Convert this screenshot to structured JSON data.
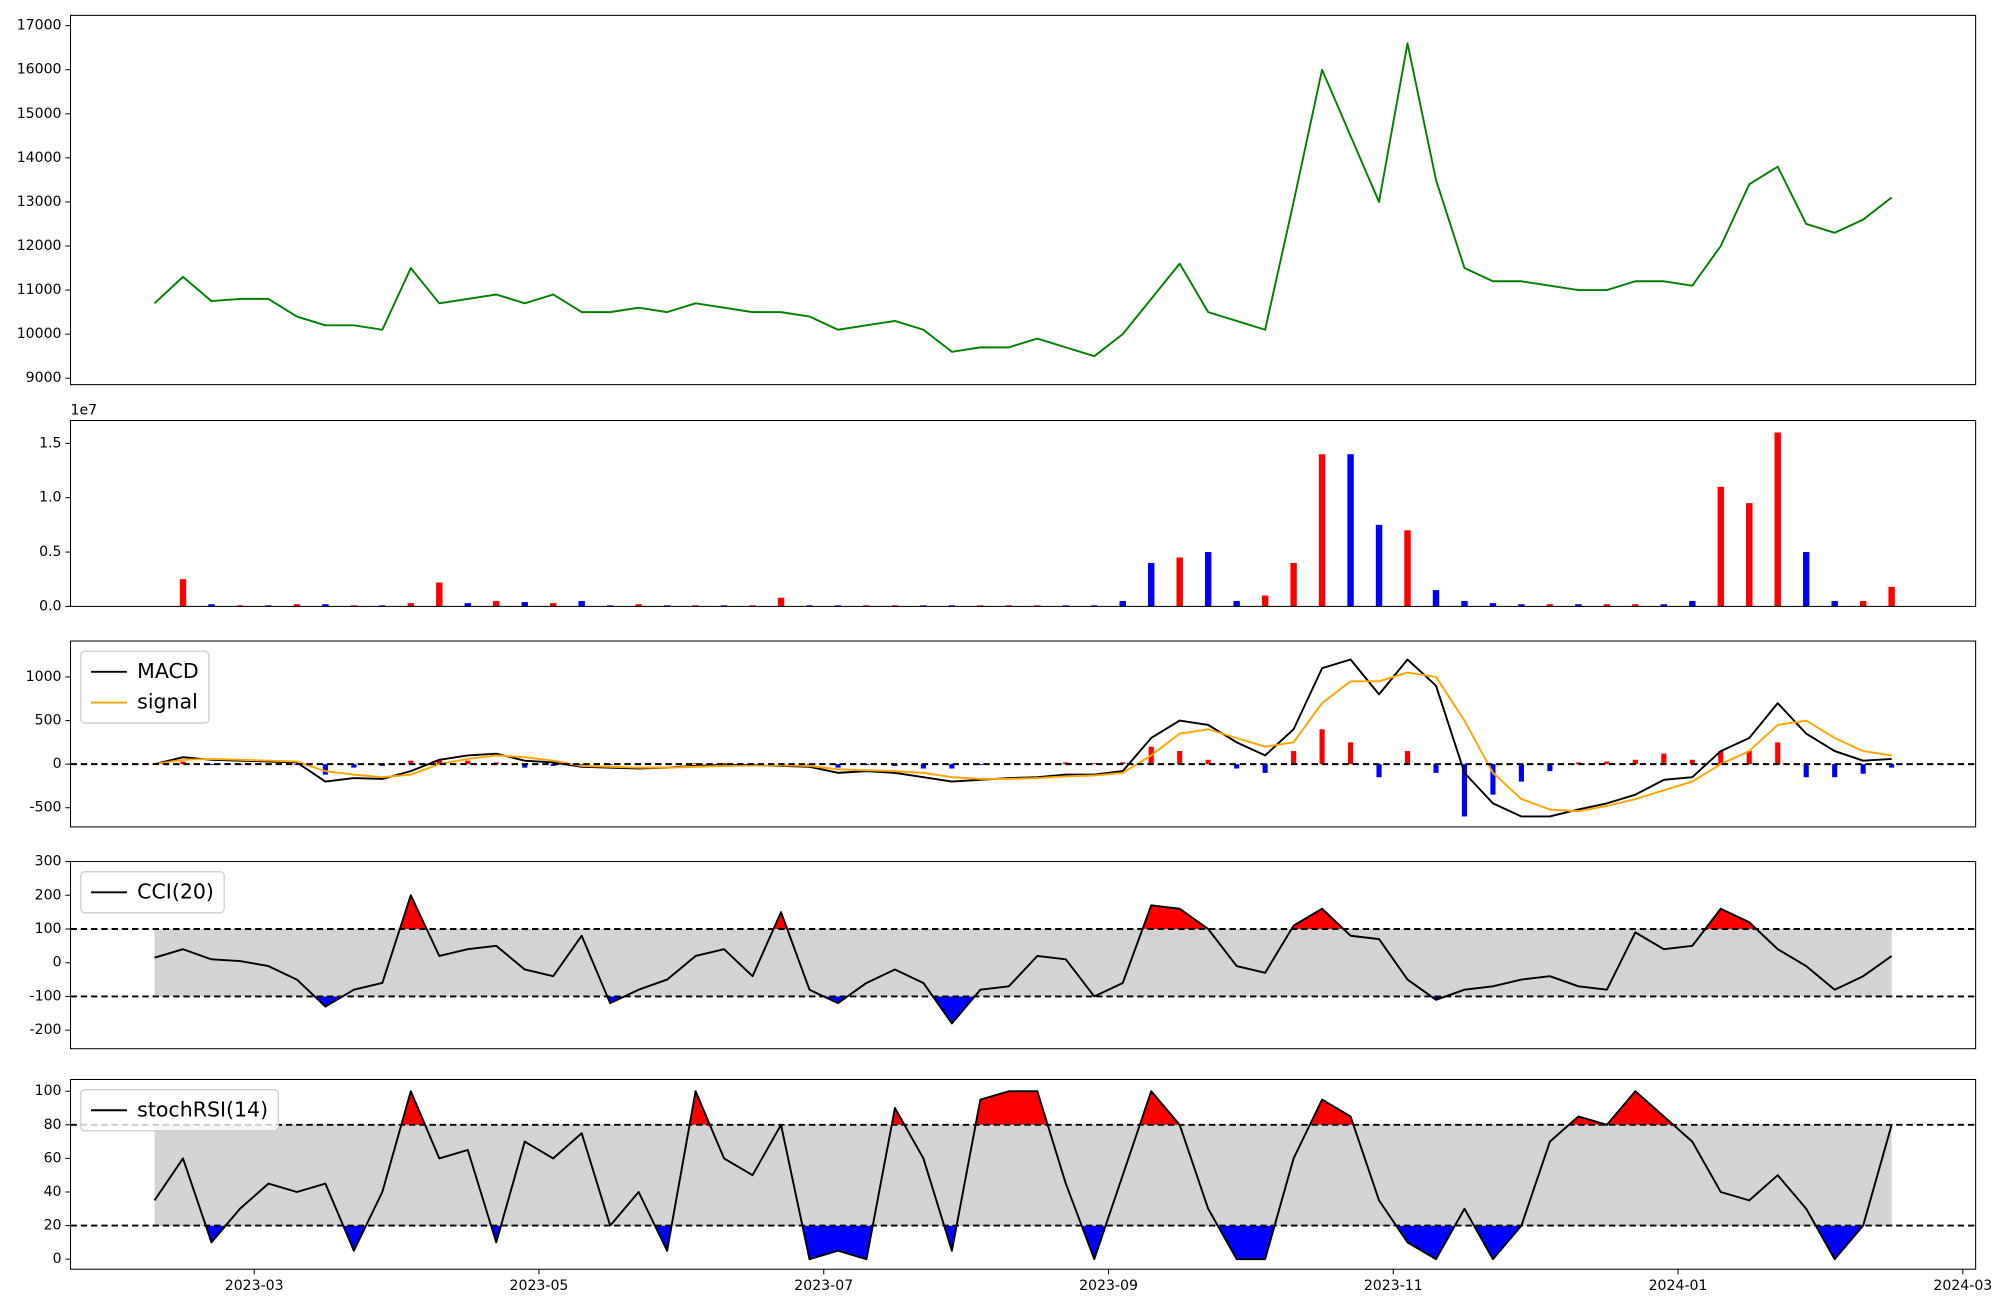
{
  "chart_data": [
    {
      "type": "line",
      "x": [
        2.3,
        2.5,
        2.7,
        2.9,
        3.1,
        3.3,
        3.5,
        3.7,
        3.9,
        4.1,
        4.3,
        4.5,
        4.7,
        4.9,
        5.1,
        5.3,
        5.5,
        5.7,
        5.9,
        6.1,
        6.3,
        6.5,
        6.7,
        6.9,
        7.1,
        7.3,
        7.5,
        7.7,
        7.9,
        8.1,
        8.3,
        8.5,
        8.7,
        8.9,
        9.1,
        9.3,
        9.5,
        9.7,
        9.9,
        10.1,
        10.3,
        10.5,
        10.7,
        10.9,
        11.1,
        11.3,
        11.5,
        11.7,
        11.9,
        12.1,
        12.3,
        12.5,
        12.7,
        12.9,
        13.1,
        13.3,
        13.5,
        13.7,
        13.9,
        14.1,
        14.3,
        14.5
      ],
      "xlim": [
        1.71,
        15.09
      ],
      "ylim": [
        8855,
        17233
      ],
      "yticks": [
        9000,
        10000,
        11000,
        12000,
        13000,
        14000,
        15000,
        16000,
        17000
      ],
      "series": [
        {
          "color": "#008000",
          "values": [
            10700,
            11300,
            10750,
            10800,
            10800,
            10400,
            10200,
            10200,
            10100,
            11500,
            10700,
            10800,
            10900,
            10700,
            10900,
            10500,
            10500,
            10600,
            10500,
            10700,
            10600,
            10500,
            10500,
            10400,
            10100,
            10200,
            10300,
            10100,
            9600,
            9700,
            9700,
            9900,
            9700,
            9500,
            10000,
            10800,
            11600,
            10500,
            10300,
            10100,
            13000,
            16000,
            14500,
            13000,
            16600,
            13500,
            11500,
            11200,
            11200,
            11100,
            11000,
            11000,
            11200,
            11200,
            11100,
            12000,
            13400,
            13800,
            12500,
            12300,
            12600,
            13100
          ]
        }
      ]
    },
    {
      "type": "bar",
      "x": [
        2.3,
        2.5,
        2.7,
        2.9,
        3.1,
        3.3,
        3.5,
        3.7,
        3.9,
        4.1,
        4.3,
        4.5,
        4.7,
        4.9,
        5.1,
        5.3,
        5.5,
        5.7,
        5.9,
        6.1,
        6.3,
        6.5,
        6.7,
        6.9,
        7.1,
        7.3,
        7.5,
        7.7,
        7.9,
        8.1,
        8.3,
        8.5,
        8.7,
        8.9,
        9.1,
        9.3,
        9.5,
        9.7,
        9.9,
        10.1,
        10.3,
        10.5,
        10.7,
        10.9,
        11.1,
        11.3,
        11.5,
        11.7,
        11.9,
        12.1,
        12.3,
        12.5,
        12.7,
        12.9,
        13.1,
        13.3,
        13.5,
        13.7,
        13.9,
        14.1,
        14.3,
        14.5
      ],
      "xlim": [
        1.71,
        15.09
      ],
      "ylim": [
        0,
        1.71
      ],
      "yticks": [
        {
          "value": 0,
          "label": "0.0"
        },
        0.5,
        {
          "value": 1,
          "label": "1.0"
        },
        1.5
      ],
      "offset_label": "1e7",
      "values": [
        0,
        0.25,
        0.02,
        0.01,
        0.01,
        0.02,
        0.02,
        0.01,
        0.01,
        0.03,
        0.22,
        0.03,
        0.05,
        0.04,
        0.03,
        0.05,
        0.01,
        0.02,
        0.01,
        0.01,
        0.01,
        0.01,
        0.08,
        0.01,
        0.01,
        0.01,
        0.01,
        0.01,
        0.01,
        0.01,
        0.01,
        0.01,
        0.01,
        0.01,
        0.05,
        0.4,
        0.45,
        0.5,
        0.05,
        0.1,
        0.4,
        1.4,
        1.4,
        0.75,
        0.7,
        0.15,
        0.05,
        0.03,
        0.02,
        0.02,
        0.02,
        0.02,
        0.02,
        0.02,
        0.05,
        1.1,
        0.95,
        1.6,
        0.5,
        0.05,
        0.05,
        0.18
      ],
      "colors": [
        "blue",
        "red",
        "blue",
        "red",
        "blue",
        "red",
        "blue",
        "red",
        "blue",
        "red",
        "red",
        "blue",
        "red",
        "blue",
        "red",
        "blue",
        "blue",
        "red",
        "blue",
        "red",
        "blue",
        "red",
        "red",
        "blue",
        "blue",
        "red",
        "red",
        "blue",
        "blue",
        "red",
        "red",
        "red",
        "blue",
        "blue",
        "blue",
        "blue",
        "red",
        "blue",
        "blue",
        "red",
        "red",
        "red",
        "blue",
        "blue",
        "red",
        "blue",
        "blue",
        "blue",
        "blue",
        "red",
        "blue",
        "red",
        "red",
        "blue",
        "blue",
        "red",
        "red",
        "red",
        "blue",
        "blue",
        "red",
        "red"
      ]
    },
    {
      "type": "line",
      "x": [
        2.3,
        2.5,
        2.7,
        2.9,
        3.1,
        3.3,
        3.5,
        3.7,
        3.9,
        4.1,
        4.3,
        4.5,
        4.7,
        4.9,
        5.1,
        5.3,
        5.5,
        5.7,
        5.9,
        6.1,
        6.3,
        6.5,
        6.7,
        6.9,
        7.1,
        7.3,
        7.5,
        7.7,
        7.9,
        8.1,
        8.3,
        8.5,
        8.7,
        8.9,
        9.1,
        9.3,
        9.5,
        9.7,
        9.9,
        10.1,
        10.3,
        10.5,
        10.7,
        10.9,
        11.1,
        11.3,
        11.5,
        11.7,
        11.9,
        12.1,
        12.3,
        12.5,
        12.7,
        12.9,
        13.1,
        13.3,
        13.5,
        13.7,
        13.9,
        14.1,
        14.3,
        14.5
      ],
      "xlim": [
        1.71,
        15.09
      ],
      "ylim": [
        -720,
        1412
      ],
      "yticks": [
        -500,
        0,
        500,
        1000
      ],
      "levels": [
        0
      ],
      "histogram": [
        0,
        30,
        -10,
        -10,
        -10,
        -10,
        -120,
        -40,
        -20,
        40,
        50,
        40,
        20,
        -40,
        -20,
        -10,
        -10,
        -10,
        0,
        10,
        10,
        5,
        -5,
        -10,
        -40,
        -10,
        -20,
        -50,
        -50,
        -10,
        10,
        10,
        20,
        10,
        20,
        200,
        150,
        50,
        -50,
        -100,
        150,
        400,
        250,
        -150,
        150,
        -100,
        -600,
        -350,
        -200,
        -80,
        20,
        30,
        50,
        120,
        50,
        150,
        150,
        250,
        -150,
        -150,
        -110,
        -40
      ],
      "positive_color": "#ff0000",
      "negative_color": "#0000ff",
      "legend": "upper left",
      "series": [
        {
          "name": "MACD",
          "color": "#000000",
          "values": [
            0,
            80,
            50,
            40,
            30,
            20,
            -200,
            -160,
            -170,
            -80,
            50,
            100,
            120,
            40,
            20,
            -30,
            -40,
            -50,
            -40,
            -20,
            -10,
            -10,
            -20,
            -30,
            -100,
            -80,
            -100,
            -150,
            -200,
            -180,
            -160,
            -150,
            -120,
            -120,
            -80,
            300,
            500,
            450,
            250,
            100,
            400,
            1100,
            1200,
            800,
            1200,
            900,
            -100,
            -450,
            -600,
            -600,
            -520,
            -450,
            -350,
            -180,
            -150,
            150,
            300,
            700,
            350,
            150,
            40,
            60
          ]
        },
        {
          "name": "signal",
          "color": "#ffa500",
          "values": [
            0,
            50,
            60,
            50,
            40,
            30,
            -80,
            -120,
            -150,
            -120,
            0,
            60,
            100,
            80,
            40,
            -20,
            -30,
            -40,
            -40,
            -30,
            -20,
            -15,
            -15,
            -20,
            -60,
            -70,
            -80,
            -100,
            -150,
            -170,
            -170,
            -160,
            -140,
            -130,
            -100,
            100,
            350,
            400,
            300,
            200,
            250,
            700,
            950,
            950,
            1050,
            1000,
            500,
            -100,
            -400,
            -520,
            -540,
            -480,
            -400,
            -300,
            -200,
            0,
            150,
            450,
            500,
            300,
            150,
            100
          ]
        }
      ]
    },
    {
      "type": "line",
      "x": [
        2.3,
        2.5,
        2.7,
        2.9,
        3.1,
        3.3,
        3.5,
        3.7,
        3.9,
        4.1,
        4.3,
        4.5,
        4.7,
        4.9,
        5.1,
        5.3,
        5.5,
        5.7,
        5.9,
        6.1,
        6.3,
        6.5,
        6.7,
        6.9,
        7.1,
        7.3,
        7.5,
        7.7,
        7.9,
        8.1,
        8.3,
        8.5,
        8.7,
        8.9,
        9.1,
        9.3,
        9.5,
        9.7,
        9.9,
        10.1,
        10.3,
        10.5,
        10.7,
        10.9,
        11.1,
        11.3,
        11.5,
        11.7,
        11.9,
        12.1,
        12.3,
        12.5,
        12.7,
        12.9,
        13.1,
        13.3,
        13.5,
        13.7,
        13.9,
        14.1,
        14.3,
        14.5
      ],
      "xlim": [
        1.71,
        15.09
      ],
      "ylim": [
        -255,
        300
      ],
      "yticks": [
        -200,
        -100,
        0,
        100,
        200,
        300
      ],
      "levels": [
        100,
        -100
      ],
      "band_color": "#d3d3d3",
      "upper_fill_color": "#ff0000",
      "lower_fill_color": "#0000ff",
      "legend": "upper left",
      "series": [
        {
          "name": "CCI(20)",
          "color": "#000000",
          "values": [
            15,
            40,
            10,
            5,
            -10,
            -50,
            -130,
            -80,
            -60,
            200,
            20,
            40,
            50,
            -20,
            -40,
            80,
            -120,
            -80,
            -50,
            20,
            40,
            -40,
            150,
            -80,
            -120,
            -60,
            -20,
            -60,
            -180,
            -80,
            -70,
            20,
            10,
            -100,
            -60,
            170,
            160,
            100,
            -10,
            -30,
            110,
            160,
            80,
            70,
            -50,
            -110,
            -80,
            -70,
            -50,
            -40,
            -70,
            -80,
            90,
            40,
            50,
            160,
            120,
            40,
            -10,
            -80,
            -40,
            20
          ]
        }
      ]
    },
    {
      "type": "line",
      "x": [
        2.3,
        2.5,
        2.7,
        2.9,
        3.1,
        3.3,
        3.5,
        3.7,
        3.9,
        4.1,
        4.3,
        4.5,
        4.7,
        4.9,
        5.1,
        5.3,
        5.5,
        5.7,
        5.9,
        6.1,
        6.3,
        6.5,
        6.7,
        6.9,
        7.1,
        7.3,
        7.5,
        7.7,
        7.9,
        8.1,
        8.3,
        8.5,
        8.7,
        8.9,
        9.1,
        9.3,
        9.5,
        9.7,
        9.9,
        10.1,
        10.3,
        10.5,
        10.7,
        10.9,
        11.1,
        11.3,
        11.5,
        11.7,
        11.9,
        12.1,
        12.3,
        12.5,
        12.7,
        12.9,
        13.1,
        13.3,
        13.5,
        13.7,
        13.9,
        14.1,
        14.3,
        14.5
      ],
      "xlim": [
        1.71,
        15.09
      ],
      "ylim": [
        -6,
        107
      ],
      "yticks": [
        0,
        20,
        40,
        60,
        80,
        100
      ],
      "xticks": [
        {
          "value": 3,
          "label": "2023-03"
        },
        {
          "value": 5,
          "label": "2023-05"
        },
        {
          "value": 7,
          "label": "2023-07"
        },
        {
          "value": 9,
          "label": "2023-09"
        },
        {
          "value": 11,
          "label": "2023-11"
        },
        {
          "value": 13,
          "label": "2024-01"
        },
        {
          "value": 15,
          "label": "2024-03"
        }
      ],
      "levels": [
        80,
        20
      ],
      "band_color": "#d3d3d3",
      "upper_fill_color": "#ff0000",
      "lower_fill_color": "#0000ff",
      "legend": "upper left",
      "series": [
        {
          "name": "stochRSI(14)",
          "color": "#000000",
          "values": [
            35,
            60,
            10,
            30,
            45,
            40,
            45,
            5,
            40,
            100,
            60,
            65,
            10,
            70,
            60,
            75,
            20,
            40,
            5,
            100,
            60,
            50,
            80,
            0,
            5,
            0,
            90,
            60,
            5,
            95,
            100,
            100,
            45,
            0,
            50,
            100,
            80,
            30,
            0,
            0,
            60,
            95,
            85,
            35,
            10,
            0,
            30,
            0,
            20,
            70,
            85,
            80,
            100,
            85,
            70,
            40,
            35,
            50,
            30,
            0,
            20,
            80
          ]
        }
      ]
    }
  ]
}
